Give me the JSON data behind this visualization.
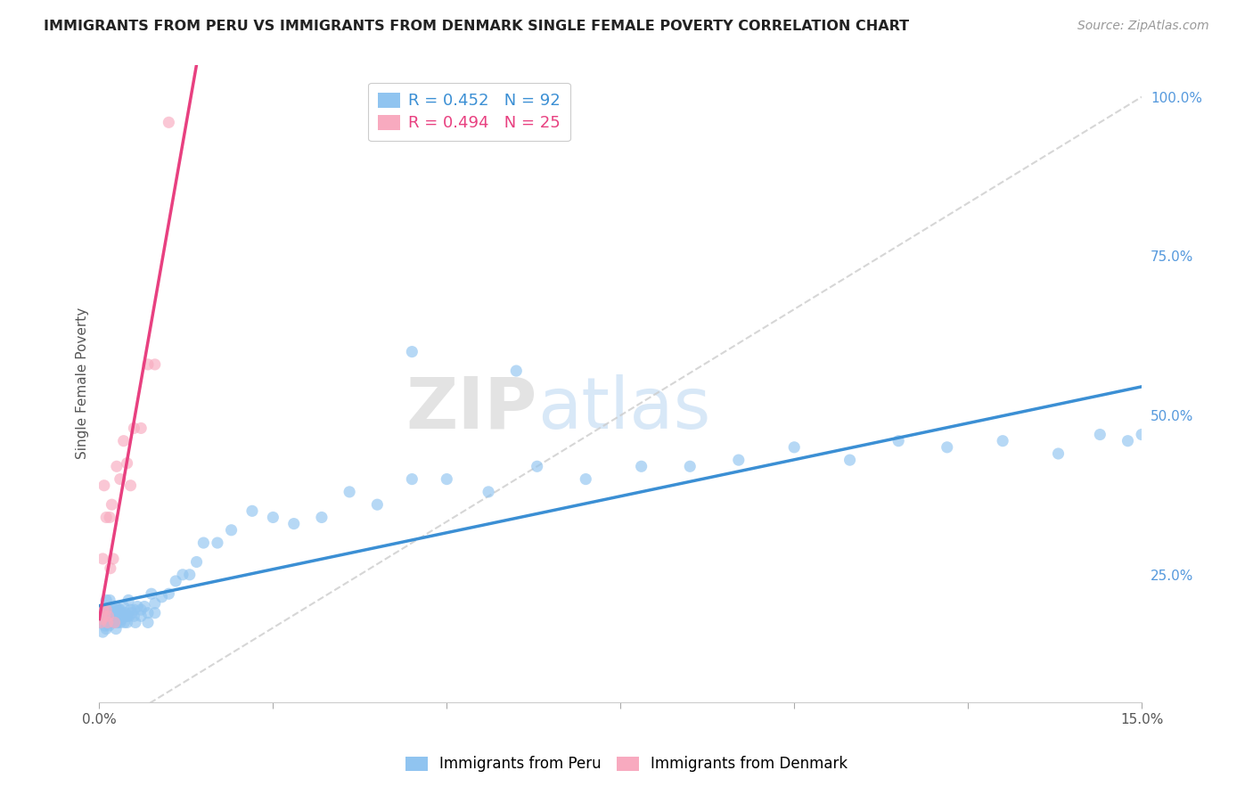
{
  "title": "IMMIGRANTS FROM PERU VS IMMIGRANTS FROM DENMARK SINGLE FEMALE POVERTY CORRELATION CHART",
  "source": "Source: ZipAtlas.com",
  "ylabel": "Single Female Poverty",
  "xlim": [
    0.0,
    0.15
  ],
  "ylim": [
    0.05,
    1.05
  ],
  "xtick_positions": [
    0.0,
    0.025,
    0.05,
    0.075,
    0.1,
    0.125,
    0.15
  ],
  "xticklabels_ends": {
    "0": "0.0%",
    "6": "15.0%"
  },
  "yticks_right": [
    0.25,
    0.5,
    0.75,
    1.0
  ],
  "yticklabels_right": [
    "25.0%",
    "50.0%",
    "75.0%",
    "100.0%"
  ],
  "peru_color": "#90C4F0",
  "denmark_color": "#F8AABF",
  "peru_label": "Immigrants from Peru",
  "denmark_label": "Immigrants from Denmark",
  "peru_R": 0.452,
  "peru_N": 92,
  "denmark_R": 0.494,
  "denmark_N": 25,
  "peru_line_color": "#3B8FD4",
  "denmark_line_color": "#E84080",
  "diag_line_color": "#CCCCCC",
  "watermark_zip": "ZIP",
  "watermark_atlas": "atlas",
  "background_color": "#FFFFFF",
  "grid_color": "#DDDDDD",
  "title_color": "#222222",
  "peru_scatter_x": [
    0.0002,
    0.0003,
    0.0005,
    0.0006,
    0.0007,
    0.0008,
    0.0009,
    0.001,
    0.001,
    0.001,
    0.0012,
    0.0012,
    0.0013,
    0.0014,
    0.0015,
    0.0015,
    0.0016,
    0.0017,
    0.0018,
    0.0019,
    0.002,
    0.002,
    0.0021,
    0.0022,
    0.0023,
    0.0024,
    0.0025,
    0.0026,
    0.0027,
    0.0028,
    0.003,
    0.003,
    0.0031,
    0.0032,
    0.0033,
    0.0035,
    0.0036,
    0.0037,
    0.0038,
    0.004,
    0.004,
    0.0042,
    0.0043,
    0.0045,
    0.0047,
    0.005,
    0.005,
    0.0052,
    0.0055,
    0.006,
    0.006,
    0.0065,
    0.007,
    0.007,
    0.0075,
    0.008,
    0.008,
    0.009,
    0.01,
    0.011,
    0.012,
    0.013,
    0.014,
    0.015,
    0.017,
    0.019,
    0.022,
    0.025,
    0.028,
    0.032,
    0.036,
    0.04,
    0.045,
    0.05,
    0.056,
    0.063,
    0.07,
    0.078,
    0.085,
    0.092,
    0.1,
    0.108,
    0.115,
    0.122,
    0.13,
    0.138,
    0.144,
    0.148,
    0.15,
    0.152,
    0.045,
    0.06
  ],
  "peru_scatter_y": [
    0.175,
    0.18,
    0.16,
    0.195,
    0.185,
    0.17,
    0.19,
    0.18,
    0.21,
    0.165,
    0.175,
    0.195,
    0.185,
    0.17,
    0.18,
    0.21,
    0.19,
    0.175,
    0.185,
    0.195,
    0.18,
    0.19,
    0.175,
    0.185,
    0.2,
    0.165,
    0.195,
    0.175,
    0.185,
    0.195,
    0.175,
    0.195,
    0.19,
    0.18,
    0.185,
    0.2,
    0.175,
    0.19,
    0.185,
    0.185,
    0.175,
    0.21,
    0.185,
    0.195,
    0.19,
    0.195,
    0.185,
    0.175,
    0.2,
    0.195,
    0.185,
    0.2,
    0.19,
    0.175,
    0.22,
    0.19,
    0.205,
    0.215,
    0.22,
    0.24,
    0.25,
    0.25,
    0.27,
    0.3,
    0.3,
    0.32,
    0.35,
    0.34,
    0.33,
    0.34,
    0.38,
    0.36,
    0.4,
    0.4,
    0.38,
    0.42,
    0.4,
    0.42,
    0.42,
    0.43,
    0.45,
    0.43,
    0.46,
    0.45,
    0.46,
    0.44,
    0.47,
    0.46,
    0.47,
    0.45,
    0.6,
    0.57
  ],
  "denmark_scatter_x": [
    0.0002,
    0.0004,
    0.0005,
    0.0006,
    0.0007,
    0.0008,
    0.001,
    0.001,
    0.0012,
    0.0013,
    0.0015,
    0.0016,
    0.0018,
    0.002,
    0.0022,
    0.0025,
    0.003,
    0.0035,
    0.004,
    0.0045,
    0.005,
    0.006,
    0.007,
    0.008,
    0.01
  ],
  "denmark_scatter_y": [
    0.175,
    0.18,
    0.275,
    0.195,
    0.39,
    0.185,
    0.34,
    0.195,
    0.175,
    0.185,
    0.34,
    0.26,
    0.36,
    0.275,
    0.175,
    0.42,
    0.4,
    0.46,
    0.425,
    0.39,
    0.48,
    0.48,
    0.58,
    0.58,
    0.96
  ]
}
